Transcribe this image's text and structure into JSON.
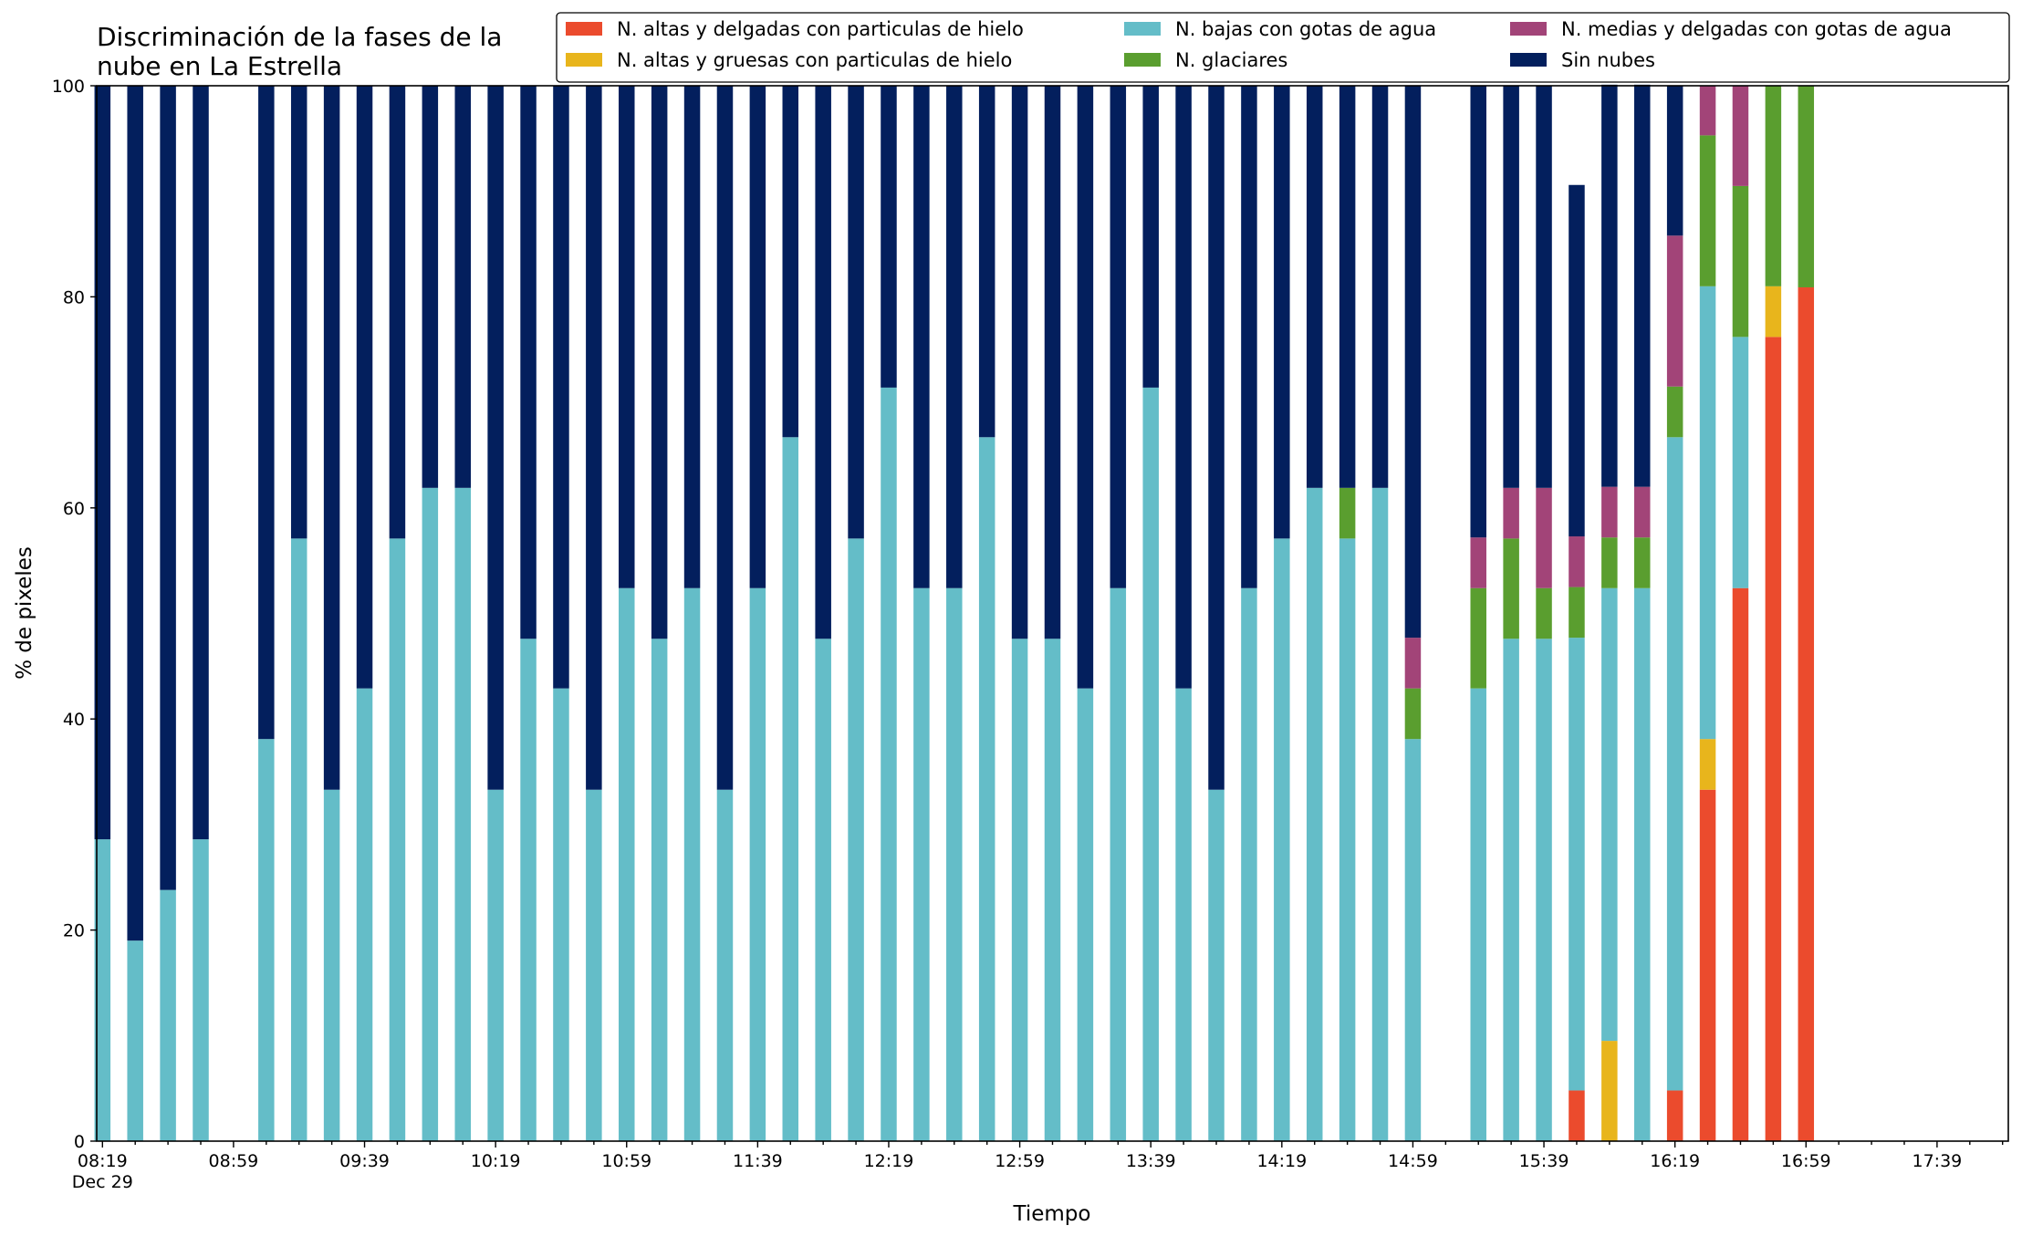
{
  "chart_data": {
    "type": "bar",
    "stacked": true,
    "title_lines": [
      "Discriminación de la fases de la",
      "nube en La Estrella"
    ],
    "xlabel": "Tiempo",
    "ylabel": "% de pixeles",
    "ylim": [
      0,
      100
    ],
    "yticks": [
      "0",
      "20",
      "40",
      "60",
      "80",
      "100"
    ],
    "grid": false,
    "legend_placement": "top-right",
    "x_start": "08:19",
    "x_end": "17:59",
    "x_step_minutes": 10,
    "x_tick_labels": [
      "08:19",
      "08:59",
      "09:39",
      "10:19",
      "10:59",
      "11:39",
      "12:19",
      "12:59",
      "13:39",
      "14:19",
      "14:59",
      "15:39",
      "16:19",
      "16:59",
      "17:39"
    ],
    "x_first_tick_sublabel": "Dec 29",
    "times": [
      "08:19",
      "08:29",
      "08:39",
      "08:49",
      "09:09",
      "09:19",
      "09:29",
      "09:39",
      "09:49",
      "09:59",
      "10:09",
      "10:19",
      "10:29",
      "10:39",
      "10:49",
      "10:59",
      "11:09",
      "11:19",
      "11:29",
      "11:39",
      "11:49",
      "11:59",
      "12:09",
      "12:19",
      "12:29",
      "12:39",
      "12:49",
      "12:59",
      "13:09",
      "13:19",
      "13:29",
      "13:39",
      "13:49",
      "13:59",
      "14:09",
      "14:19",
      "14:29",
      "14:39",
      "14:49",
      "14:59",
      "15:19",
      "15:29",
      "15:39",
      "15:49",
      "15:59",
      "16:09",
      "16:19",
      "16:29",
      "16:39",
      "16:49",
      "16:59"
    ],
    "series": [
      {
        "name": "N. altas y delgadas con particulas de hielo",
        "color": "#EB4B2D",
        "values": [
          0,
          0,
          0,
          0,
          0,
          0,
          0,
          0,
          0,
          0,
          0,
          0,
          0,
          0,
          0,
          0,
          0,
          0,
          0,
          0,
          0,
          0,
          0,
          0,
          0,
          0,
          0,
          0,
          0,
          0,
          0,
          0,
          0,
          0,
          0,
          0,
          0,
          0,
          0,
          0,
          0,
          0,
          0,
          4.8,
          0,
          0,
          4.8,
          33.3,
          52.4,
          76.2,
          80.9
        ]
      },
      {
        "name": "N. altas y gruesas con particulas de hielo",
        "color": "#E8B51C",
        "values": [
          0,
          0,
          0,
          0,
          0,
          0,
          0,
          0,
          0,
          0,
          0,
          0,
          0,
          0,
          0,
          0,
          0,
          0,
          0,
          0,
          0,
          0,
          0,
          0,
          0,
          0,
          0,
          0,
          0,
          0,
          0,
          0,
          0,
          0,
          0,
          0,
          0,
          0,
          0,
          0,
          0,
          0,
          0,
          0,
          9.5,
          0,
          0,
          4.8,
          0,
          4.8,
          0
        ]
      },
      {
        "name": "N. bajas con gotas de agua",
        "color": "#64BDC8",
        "values": [
          28.6,
          19.0,
          23.8,
          28.6,
          38.1,
          57.1,
          33.3,
          42.9,
          57.1,
          61.9,
          61.9,
          33.3,
          47.6,
          42.9,
          33.3,
          52.4,
          47.6,
          52.4,
          33.3,
          52.4,
          66.7,
          47.6,
          57.1,
          71.4,
          52.4,
          52.4,
          66.7,
          47.6,
          47.6,
          42.9,
          52.4,
          71.4,
          42.9,
          33.3,
          52.4,
          57.1,
          61.9,
          57.1,
          61.9,
          38.1,
          42.9,
          47.6,
          47.6,
          42.9,
          42.9,
          52.4,
          61.9,
          42.9,
          23.8,
          0,
          0
        ]
      },
      {
        "name": "N. glaciares",
        "color": "#5A9E2F",
        "values": [
          0,
          0,
          0,
          0,
          0,
          0,
          0,
          0,
          0,
          0,
          0,
          0,
          0,
          0,
          0,
          0,
          0,
          0,
          0,
          0,
          0,
          0,
          0,
          0,
          0,
          0,
          0,
          0,
          0,
          0,
          0,
          0,
          0,
          0,
          0,
          0,
          0,
          4.8,
          0,
          4.8,
          9.5,
          9.5,
          4.8,
          4.8,
          4.8,
          4.8,
          4.8,
          14.3,
          14.3,
          19.0,
          19.1
        ]
      },
      {
        "name": "N. medias y delgadas con gotas de agua",
        "color": "#A24478",
        "values": [
          0,
          0,
          0,
          0,
          0,
          0,
          0,
          0,
          0,
          0,
          0,
          0,
          0,
          0,
          0,
          0,
          0,
          0,
          0,
          0,
          0,
          0,
          0,
          0,
          0,
          0,
          0,
          0,
          0,
          0,
          0,
          0,
          0,
          0,
          0,
          0,
          0,
          0,
          0,
          4.8,
          4.8,
          4.8,
          9.5,
          4.8,
          4.8,
          4.8,
          14.3,
          4.7,
          9.5,
          0,
          0
        ]
      },
      {
        "name": "Sin nubes",
        "color": "#031F5D",
        "values": [
          71.4,
          81.0,
          76.2,
          71.4,
          61.9,
          42.9,
          66.7,
          57.1,
          42.9,
          38.1,
          38.1,
          66.7,
          52.4,
          57.1,
          66.7,
          47.6,
          52.4,
          47.6,
          66.7,
          47.6,
          33.3,
          52.4,
          42.9,
          28.6,
          47.6,
          47.6,
          33.3,
          52.4,
          52.4,
          57.1,
          47.6,
          28.6,
          57.1,
          66.7,
          47.6,
          42.9,
          38.1,
          38.1,
          38.1,
          52.3,
          42.8,
          38.1,
          38.1,
          33.3,
          38.1,
          38.1,
          14.2,
          0,
          0,
          0,
          0
        ]
      }
    ]
  }
}
